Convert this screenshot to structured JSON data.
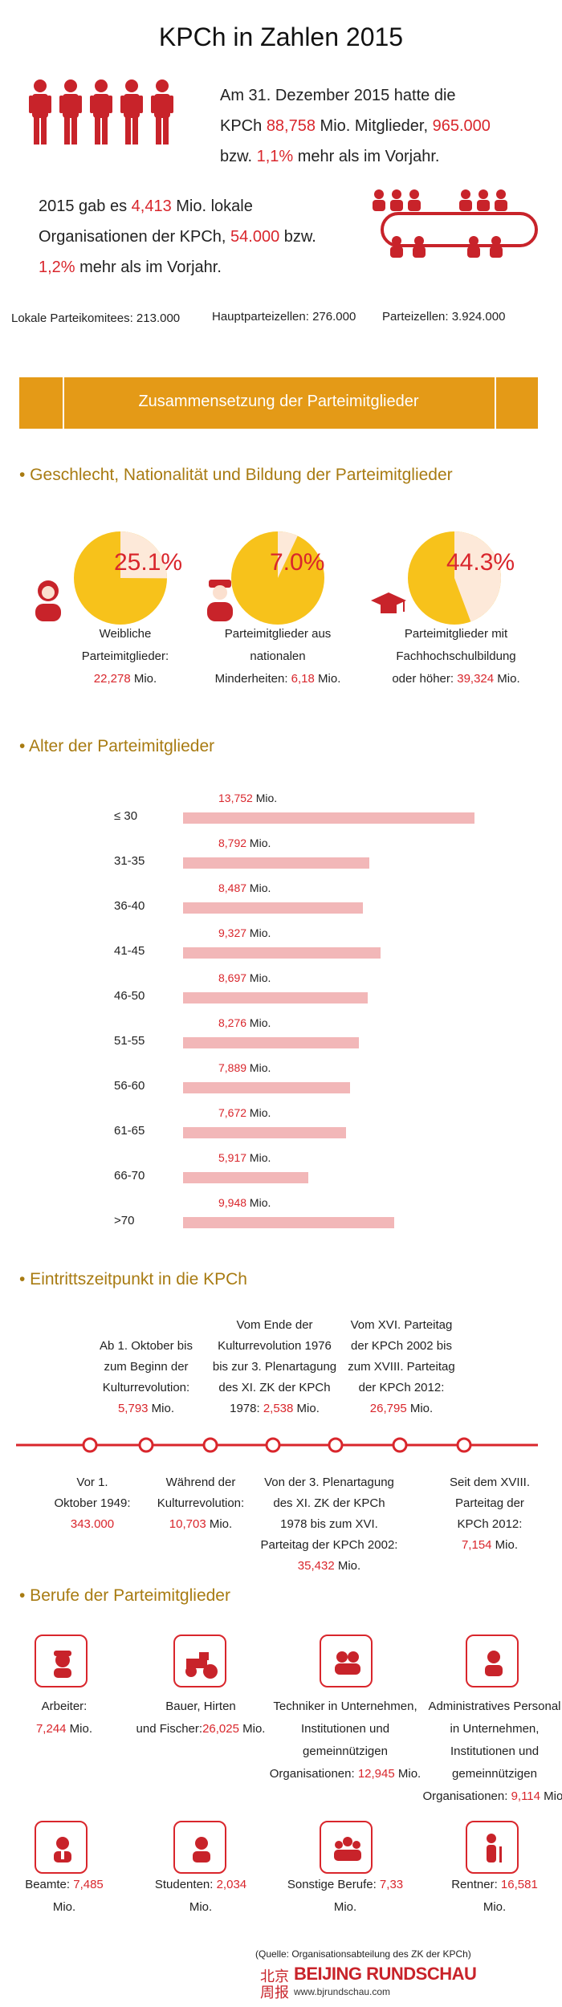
{
  "header": {
    "title": "KPCh in Zahlen 2015",
    "members_p1": "Am 31. Dezember 2015 hatte die",
    "members_p2": "KPCh ",
    "members_v1": "88,758",
    "members_p3": " Mio. Mitglieder, ",
    "members_v2": "965.000",
    "members_p4": "bzw. ",
    "members_v3": "1,1%",
    "members_p5": " mehr als im Vorjahr.",
    "org_p1": "2015 gab es ",
    "org_v1": "4,413",
    "org_p2": " Mio. lokale",
    "org_p3": "Organisationen der KPCh, ",
    "org_v2": "54.000",
    "org_p4": " bzw.",
    "org_v3": "1,2%",
    "org_p5": " mehr als im Vorjahr.",
    "committees": "Lokale Parteikomitees: 213.000",
    "main_cells": "Hauptparteizellen: 276.000",
    "cells": "Parteizellen: 3.924.000",
    "banner": "Zusammensetzung der Parteimitglieder"
  },
  "sections": {
    "composition": "• Geschlecht, Nationalität und Bildung der Parteimitglieder",
    "age": "• Alter der Parteimitglieder",
    "entry": "• Eintrittszeitpunkt in die KPCh",
    "jobs": "• Berufe der Parteimitglieder"
  },
  "pies": [
    {
      "pct": "25.1%",
      "value": 25.1,
      "l1": "Weibliche",
      "l2": "Parteimitglieder:",
      "v": "22,278",
      "unit": " Mio."
    },
    {
      "pct": "7.0%",
      "value": 7.0,
      "l1": "Parteimitglieder aus",
      "l2": "nationalen",
      "l3a": "Minderheiten: ",
      "v": "6,18",
      "unit": " Mio."
    },
    {
      "pct": "44.3%",
      "value": 44.3,
      "l1": "Parteimitglieder mit",
      "l2": "Fachhochschulbildung",
      "l3a": "oder höher: ",
      "v": "39,324",
      "unit": " Mio."
    }
  ],
  "chart_data": {
    "type": "bar",
    "title": "Alter der Parteimitglieder",
    "unit": "Mio.",
    "categories": [
      "≤ 30",
      "31-35",
      "36-40",
      "41-45",
      "46-50",
      "51-55",
      "56-60",
      "61-65",
      "66-70",
      ">70"
    ],
    "values": [
      13.752,
      8.792,
      8.487,
      9.327,
      8.697,
      8.276,
      7.889,
      7.672,
      5.917,
      9.948
    ],
    "value_labels": [
      "13,752",
      "8,792",
      "8,487",
      "9,327",
      "8,697",
      "8,276",
      "7,889",
      "7,672",
      "5,917",
      "9,948"
    ],
    "colors": {
      "bar": "#f2b7b8",
      "value": "#d9262c"
    }
  },
  "timeline": {
    "above": [
      {
        "lines": [
          "Ab 1. Oktober bis",
          "zum Beginn der",
          "Kulturrevolution:"
        ],
        "v": "5,793",
        "unit": " Mio."
      },
      {
        "lines": [
          "Vom Ende der",
          "Kulturrevolution 1976",
          "bis zur 3. Plenartagung",
          "des XI. ZK der KPCh"
        ],
        "last_a": "1978: ",
        "v": "2,538",
        "unit": " Mio."
      },
      {
        "lines": [
          "Vom XVI. Parteitag",
          "der KPCh 2002 bis",
          "zum XVIII. Parteitag",
          "der KPCh 2012:"
        ],
        "v": "26,795",
        "unit": " Mio."
      }
    ],
    "below": [
      {
        "lines": [
          "Vor 1.",
          "Oktober 1949:"
        ],
        "v": "343.000",
        "unit": ""
      },
      {
        "lines": [
          "Während der",
          "Kulturrevolution:"
        ],
        "v": "10,703",
        "unit": " Mio."
      },
      {
        "lines": [
          "Von der 3. Plenartagung",
          "des XI. ZK der KPCh",
          "1978 bis zum XVI.",
          "Parteitag der KPCh 2002:"
        ],
        "v": "35,432",
        "unit": " Mio."
      },
      {
        "lines": [
          "Seit dem XVIII.",
          "Parteitag der",
          "KPCh 2012:"
        ],
        "v": "7,154",
        "unit": " Mio."
      }
    ]
  },
  "jobs": [
    {
      "icon": "worker-icon",
      "lines": [
        "Arbeiter:"
      ],
      "v": "7,244",
      "unit": " Mio."
    },
    {
      "icon": "tractor-icon",
      "lines": [
        "Bauer, Hirten"
      ],
      "pre": "und Fischer:",
      "v": "26,025",
      "unit": " Mio."
    },
    {
      "icon": "technicians-icon",
      "lines": [
        "Techniker in Unternehmen,",
        "Institutionen und",
        "gemeinnützigen"
      ],
      "pre": "Organisationen: ",
      "v": "12,945",
      "unit": " Mio."
    },
    {
      "icon": "administrator-icon",
      "lines": [
        "Administratives Personal",
        "in Unternehmen,",
        "Institutionen und",
        "gemeinnützigen"
      ],
      "pre": "Organisationen: ",
      "v": "9,114",
      "unit": " Mio."
    },
    {
      "icon": "official-icon",
      "lines": [],
      "pre": "Beamte: ",
      "v": "7,485",
      "unit": "Mio."
    },
    {
      "icon": "student-icon",
      "lines": [],
      "pre": "Studenten:",
      "v": "2,034",
      "unit": " Mio."
    },
    {
      "icon": "group-icon",
      "lines": [],
      "pre": "Sonstige Berufe:",
      "v": "7,33",
      "unit": " Mio."
    },
    {
      "icon": "pensioner-icon",
      "lines": [],
      "pre": "Rentner:",
      "v": "16,581",
      "unit": " Mio."
    }
  ],
  "footer": {
    "source": "(Quelle: Organisationsabteilung des ZK der KPCh)",
    "brand": "BEIJING RUNDSCHAU",
    "url": "www.bjrundschau.com"
  }
}
